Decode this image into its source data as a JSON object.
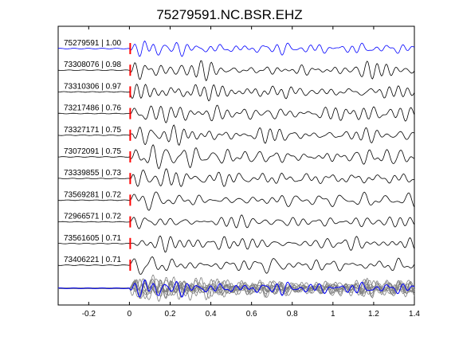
{
  "chart_data": {
    "type": "line",
    "title": "75279591.NC.BSR.EHZ",
    "xlabel": "",
    "ylabel": "",
    "xlim": [
      -0.35,
      1.4
    ],
    "x_ticks": [
      -0.2,
      0,
      0.2,
      0.4,
      0.6,
      0.8,
      1,
      1.2,
      1.4
    ],
    "x_tick_labels": [
      "-0.2",
      "0",
      "0.2",
      "0.4",
      "0.6",
      "0.8",
      "1",
      "1.2",
      "1.4"
    ],
    "pick_time": 0,
    "grid": false,
    "series": [
      {
        "name": "75279591 | 1.00",
        "color": "#0000ff"
      },
      {
        "name": "73308076 | 0.98",
        "color": "#000000"
      },
      {
        "name": "73310306 | 0.97",
        "color": "#000000"
      },
      {
        "name": "73217486 | 0.76",
        "color": "#000000"
      },
      {
        "name": "73327171 | 0.75",
        "color": "#000000"
      },
      {
        "name": "73072091 | 0.75",
        "color": "#000000"
      },
      {
        "name": "73339855 | 0.73",
        "color": "#000000"
      },
      {
        "name": "73569281 | 0.72",
        "color": "#000000"
      },
      {
        "name": "72966571 | 0.72",
        "color": "#000000"
      },
      {
        "name": "73561605 | 0.71",
        "color": "#000000"
      },
      {
        "name": "73406221 | 0.71",
        "color": "#000000"
      }
    ],
    "stack_colors": {
      "overlay": "#808080",
      "reference": "#0000ff"
    },
    "pick_color": "#ff0000"
  }
}
